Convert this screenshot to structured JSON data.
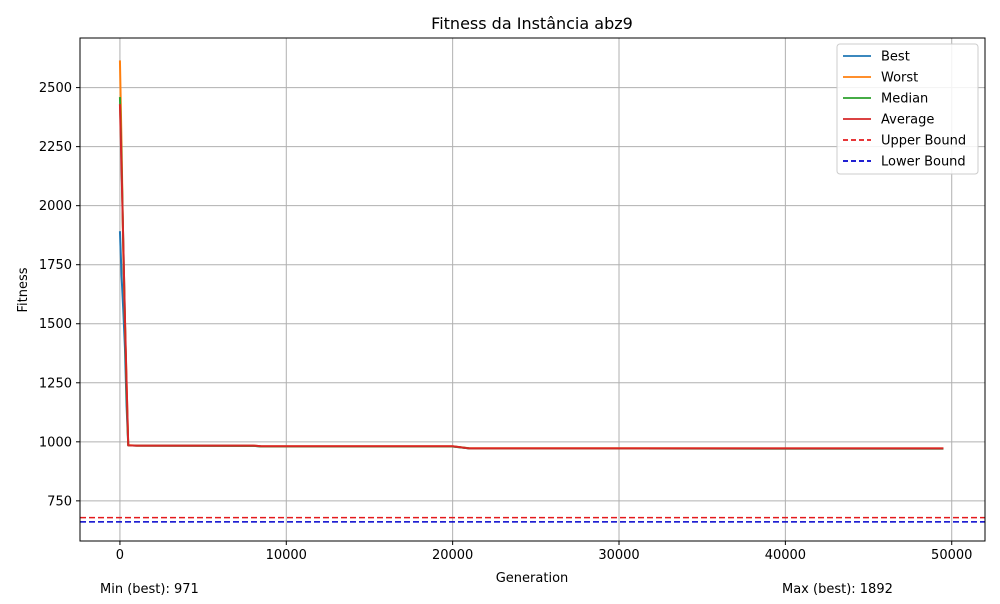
{
  "chart_data": {
    "type": "line",
    "title": "Fitness da Instância abz9",
    "xlabel": "Generation",
    "ylabel": "Fitness",
    "xlim": [
      -2400,
      52000
    ],
    "ylim": [
      580,
      2710
    ],
    "xticks": [
      0,
      10000,
      20000,
      30000,
      40000,
      50000
    ],
    "yticks": [
      750,
      1000,
      1250,
      1500,
      1750,
      2000,
      2250,
      2500
    ],
    "grid": true,
    "legend_position": "top-right",
    "series": [
      {
        "name": "Best",
        "color": "#1f77b4",
        "style": "solid",
        "points": [
          [
            0,
            1892
          ],
          [
            100,
            1700
          ],
          [
            200,
            1560
          ],
          [
            300,
            1400
          ],
          [
            400,
            1150
          ],
          [
            500,
            985
          ],
          [
            1000,
            984
          ],
          [
            8000,
            983
          ],
          [
            8500,
            980
          ],
          [
            20000,
            980
          ],
          [
            21000,
            972
          ],
          [
            49500,
            971
          ]
        ]
      },
      {
        "name": "Worst",
        "color": "#ff7f0e",
        "style": "solid",
        "points": [
          [
            0,
            2615
          ],
          [
            100,
            2250
          ],
          [
            200,
            1800
          ],
          [
            300,
            1500
          ],
          [
            400,
            1250
          ],
          [
            500,
            986
          ],
          [
            1000,
            984
          ],
          [
            8000,
            984
          ],
          [
            8500,
            981
          ],
          [
            20000,
            981
          ],
          [
            21000,
            973
          ],
          [
            49500,
            972
          ]
        ]
      },
      {
        "name": "Median",
        "color": "#2ca02c",
        "style": "solid",
        "points": [
          [
            0,
            2460
          ],
          [
            100,
            2180
          ],
          [
            200,
            1850
          ],
          [
            300,
            1520
          ],
          [
            400,
            1200
          ],
          [
            500,
            985
          ],
          [
            1000,
            984
          ],
          [
            8000,
            983
          ],
          [
            8500,
            980
          ],
          [
            20000,
            980
          ],
          [
            21000,
            972
          ],
          [
            49500,
            971
          ]
        ]
      },
      {
        "name": "Average",
        "color": "#d62728",
        "style": "solid",
        "points": [
          [
            0,
            2430
          ],
          [
            100,
            2150
          ],
          [
            200,
            1850
          ],
          [
            300,
            1530
          ],
          [
            400,
            1250
          ],
          [
            500,
            985
          ],
          [
            1000,
            984
          ],
          [
            8000,
            984
          ],
          [
            8500,
            981
          ],
          [
            20000,
            981
          ],
          [
            21000,
            972
          ],
          [
            49500,
            972
          ]
        ]
      }
    ],
    "hlines": [
      {
        "name": "Upper Bound",
        "value": 679,
        "color": "#e41a1c",
        "style": "dashed"
      },
      {
        "name": "Lower Bound",
        "value": 661,
        "color": "#0000cc",
        "style": "dashed"
      }
    ],
    "annotations": {
      "min_text": "Min (best): 971",
      "max_text": "Max (best): 1892"
    }
  }
}
